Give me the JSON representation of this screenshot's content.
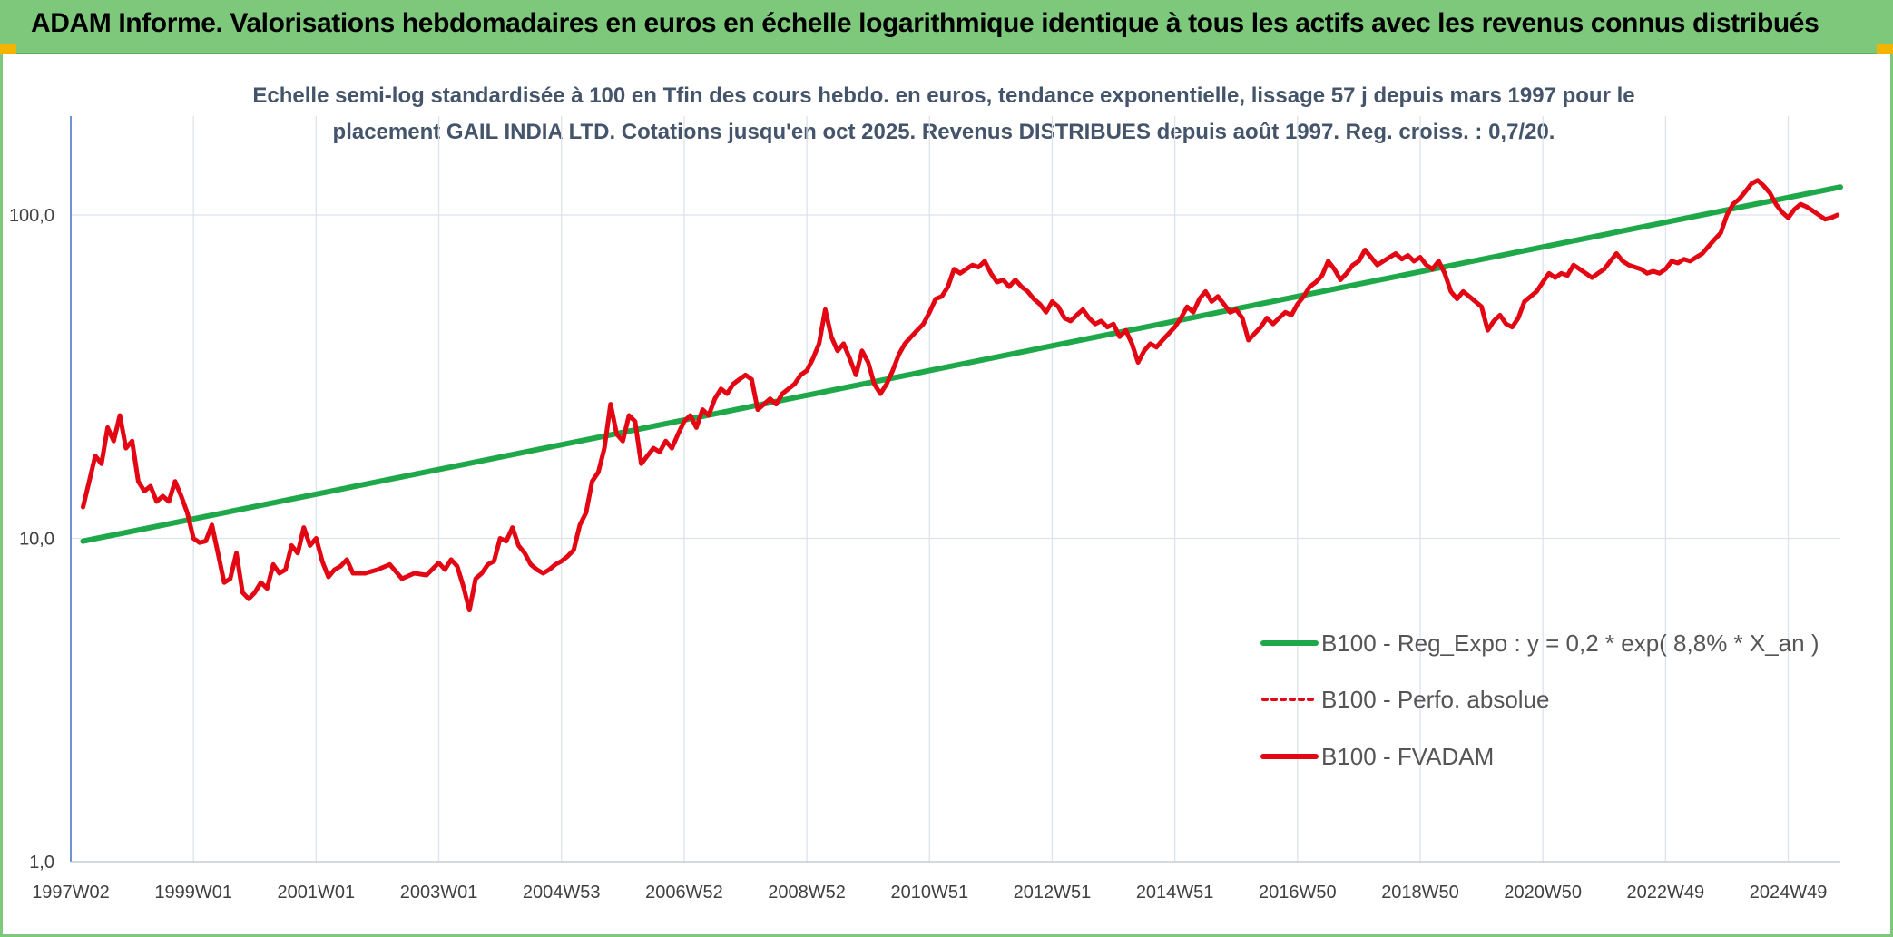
{
  "header": {
    "title": "ADAM Informe. Valorisations hebdomadaires en euros en échelle logarithmique identique à tous les actifs avec les revenus connus distribués"
  },
  "chart_data": {
    "type": "line",
    "title_line1": "Echelle semi-log standardisée à 100 en Tfin des cours hebdo. en euros, tendance exponentielle, lissage 57 j depuis mars 1997 pour le",
    "title_line2": "placement GAIL INDIA LTD. Cotations jusqu'en oct 2025. Revenus DISTRIBUES depuis août 1997. Reg. croiss. : 0,7/20.",
    "y_scale": "log",
    "ylim": [
      1,
      200
    ],
    "xlim": [
      1997.0,
      2025.85
    ],
    "y_ticks": [
      {
        "value": 1,
        "label": "1,0"
      },
      {
        "value": 10,
        "label": "10,0"
      },
      {
        "value": 100,
        "label": "100,0"
      }
    ],
    "x_ticks": [
      {
        "value": 1997.0,
        "label": "1997W02"
      },
      {
        "value": 1999.0,
        "label": "1999W01"
      },
      {
        "value": 2001.0,
        "label": "2001W01"
      },
      {
        "value": 2003.0,
        "label": "2003W01"
      },
      {
        "value": 2005.0,
        "label": "2004W53"
      },
      {
        "value": 2007.0,
        "label": "2006W52"
      },
      {
        "value": 2009.0,
        "label": "2008W52"
      },
      {
        "value": 2011.0,
        "label": "2010W51"
      },
      {
        "value": 2013.0,
        "label": "2012W51"
      },
      {
        "value": 2015.0,
        "label": "2014W51"
      },
      {
        "value": 2017.0,
        "label": "2016W50"
      },
      {
        "value": 2019.0,
        "label": "2018W50"
      },
      {
        "value": 2021.0,
        "label": "2020W50"
      },
      {
        "value": 2023.0,
        "label": "2022W49"
      },
      {
        "value": 2025.0,
        "label": "2024W49"
      }
    ],
    "grid": "vertical and horizontal",
    "legend_position": "bottom-right",
    "series": [
      {
        "name": "B100 - Reg_Expo : y = 0,2 * exp( 8,8% *  X_an )",
        "color": "#1fa84a",
        "style": "solid",
        "points": [
          [
            1997.2,
            9.8
          ],
          [
            2025.85,
            122
          ]
        ]
      },
      {
        "name": "B100 - Perfo. absolue",
        "color": "#e30613",
        "style": "dotted",
        "points": []
      },
      {
        "name": "B100 - FVADAM",
        "color": "#e30613",
        "style": "solid",
        "points": [
          [
            1997.2,
            12.5
          ],
          [
            1997.3,
            15
          ],
          [
            1997.4,
            18
          ],
          [
            1997.5,
            17
          ],
          [
            1997.6,
            22
          ],
          [
            1997.7,
            20
          ],
          [
            1997.8,
            24
          ],
          [
            1997.9,
            19
          ],
          [
            1998.0,
            20
          ],
          [
            1998.1,
            15
          ],
          [
            1998.2,
            14
          ],
          [
            1998.3,
            14.5
          ],
          [
            1998.4,
            13
          ],
          [
            1998.5,
            13.5
          ],
          [
            1998.6,
            13
          ],
          [
            1998.7,
            15
          ],
          [
            1998.8,
            13.5
          ],
          [
            1998.9,
            12
          ],
          [
            1999.0,
            10
          ],
          [
            1999.1,
            9.7
          ],
          [
            1999.2,
            9.8
          ],
          [
            1999.3,
            11
          ],
          [
            1999.4,
            9
          ],
          [
            1999.5,
            7.3
          ],
          [
            1999.6,
            7.5
          ],
          [
            1999.7,
            9
          ],
          [
            1999.8,
            6.8
          ],
          [
            1999.9,
            6.5
          ],
          [
            2000.0,
            6.8
          ],
          [
            2000.1,
            7.3
          ],
          [
            2000.2,
            7
          ],
          [
            2000.3,
            8.3
          ],
          [
            2000.4,
            7.8
          ],
          [
            2000.5,
            8
          ],
          [
            2000.6,
            9.5
          ],
          [
            2000.7,
            9
          ],
          [
            2000.8,
            10.8
          ],
          [
            2000.9,
            9.5
          ],
          [
            2001.0,
            10
          ],
          [
            2001.1,
            8.5
          ],
          [
            2001.2,
            7.6
          ],
          [
            2001.3,
            8
          ],
          [
            2001.4,
            8.2
          ],
          [
            2001.5,
            8.6
          ],
          [
            2001.6,
            7.8
          ],
          [
            2001.8,
            7.8
          ],
          [
            2002.0,
            8
          ],
          [
            2002.2,
            8.3
          ],
          [
            2002.4,
            7.5
          ],
          [
            2002.6,
            7.8
          ],
          [
            2002.8,
            7.7
          ],
          [
            2003.0,
            8.4
          ],
          [
            2003.1,
            8
          ],
          [
            2003.2,
            8.6
          ],
          [
            2003.3,
            8.2
          ],
          [
            2003.4,
            7.1
          ],
          [
            2003.5,
            6
          ],
          [
            2003.6,
            7.5
          ],
          [
            2003.7,
            7.8
          ],
          [
            2003.8,
            8.3
          ],
          [
            2003.9,
            8.5
          ],
          [
            2004.0,
            10
          ],
          [
            2004.1,
            9.8
          ],
          [
            2004.2,
            10.8
          ],
          [
            2004.3,
            9.5
          ],
          [
            2004.4,
            9
          ],
          [
            2004.5,
            8.3
          ],
          [
            2004.6,
            8
          ],
          [
            2004.7,
            7.8
          ],
          [
            2004.8,
            8
          ],
          [
            2004.9,
            8.3
          ],
          [
            2005.0,
            8.5
          ],
          [
            2005.1,
            8.8
          ],
          [
            2005.2,
            9.2
          ],
          [
            2005.3,
            11
          ],
          [
            2005.4,
            12
          ],
          [
            2005.5,
            15
          ],
          [
            2005.6,
            16
          ],
          [
            2005.7,
            19
          ],
          [
            2005.8,
            26
          ],
          [
            2005.9,
            21
          ],
          [
            2006.0,
            20
          ],
          [
            2006.1,
            24
          ],
          [
            2006.2,
            23
          ],
          [
            2006.3,
            17
          ],
          [
            2006.4,
            18
          ],
          [
            2006.5,
            19
          ],
          [
            2006.6,
            18.5
          ],
          [
            2006.7,
            20
          ],
          [
            2006.8,
            19
          ],
          [
            2006.9,
            21
          ],
          [
            2007.0,
            23
          ],
          [
            2007.1,
            24
          ],
          [
            2007.2,
            22
          ],
          [
            2007.3,
            25
          ],
          [
            2007.4,
            24
          ],
          [
            2007.5,
            27
          ],
          [
            2007.6,
            29
          ],
          [
            2007.7,
            28
          ],
          [
            2007.8,
            30
          ],
          [
            2007.9,
            31
          ],
          [
            2008.0,
            32
          ],
          [
            2008.1,
            31
          ],
          [
            2008.2,
            25
          ],
          [
            2008.3,
            26
          ],
          [
            2008.4,
            27
          ],
          [
            2008.5,
            26
          ],
          [
            2008.6,
            28
          ],
          [
            2008.7,
            29
          ],
          [
            2008.8,
            30
          ],
          [
            2008.9,
            32
          ],
          [
            2009.0,
            33
          ],
          [
            2009.1,
            36
          ],
          [
            2009.2,
            40
          ],
          [
            2009.3,
            51
          ],
          [
            2009.4,
            42
          ],
          [
            2009.5,
            38
          ],
          [
            2009.6,
            40
          ],
          [
            2009.7,
            36
          ],
          [
            2009.8,
            32
          ],
          [
            2009.9,
            38
          ],
          [
            2010.0,
            35
          ],
          [
            2010.1,
            30
          ],
          [
            2010.2,
            28
          ],
          [
            2010.3,
            30
          ],
          [
            2010.4,
            33
          ],
          [
            2010.5,
            37
          ],
          [
            2010.6,
            40
          ],
          [
            2010.7,
            42
          ],
          [
            2010.8,
            44
          ],
          [
            2010.9,
            46
          ],
          [
            2011.0,
            50
          ],
          [
            2011.1,
            55
          ],
          [
            2011.2,
            56
          ],
          [
            2011.3,
            60
          ],
          [
            2011.4,
            68
          ],
          [
            2011.5,
            66
          ],
          [
            2011.6,
            68
          ],
          [
            2011.7,
            70
          ],
          [
            2011.8,
            69
          ],
          [
            2011.9,
            72
          ],
          [
            2012.0,
            66
          ],
          [
            2012.1,
            62
          ],
          [
            2012.2,
            63
          ],
          [
            2012.3,
            60
          ],
          [
            2012.4,
            63
          ],
          [
            2012.5,
            60
          ],
          [
            2012.6,
            58
          ],
          [
            2012.7,
            55
          ],
          [
            2012.8,
            53
          ],
          [
            2012.9,
            50
          ],
          [
            2013.0,
            54
          ],
          [
            2013.1,
            52
          ],
          [
            2013.2,
            48
          ],
          [
            2013.3,
            47
          ],
          [
            2013.4,
            49
          ],
          [
            2013.5,
            51
          ],
          [
            2013.6,
            48
          ],
          [
            2013.7,
            46
          ],
          [
            2013.8,
            47
          ],
          [
            2013.9,
            45
          ],
          [
            2014.0,
            46
          ],
          [
            2014.1,
            42
          ],
          [
            2014.2,
            44
          ],
          [
            2014.3,
            40
          ],
          [
            2014.4,
            35
          ],
          [
            2014.5,
            38
          ],
          [
            2014.6,
            40
          ],
          [
            2014.7,
            39
          ],
          [
            2014.8,
            41
          ],
          [
            2014.9,
            43
          ],
          [
            2015.0,
            45
          ],
          [
            2015.1,
            48
          ],
          [
            2015.2,
            52
          ],
          [
            2015.3,
            50
          ],
          [
            2015.4,
            55
          ],
          [
            2015.5,
            58
          ],
          [
            2015.6,
            54
          ],
          [
            2015.7,
            56
          ],
          [
            2015.8,
            53
          ],
          [
            2015.9,
            50
          ],
          [
            2016.0,
            51
          ],
          [
            2016.1,
            48
          ],
          [
            2016.2,
            41
          ],
          [
            2016.3,
            43
          ],
          [
            2016.4,
            45
          ],
          [
            2016.5,
            48
          ],
          [
            2016.6,
            46
          ],
          [
            2016.7,
            48
          ],
          [
            2016.8,
            50
          ],
          [
            2016.9,
            49
          ],
          [
            2017.0,
            53
          ],
          [
            2017.1,
            56
          ],
          [
            2017.2,
            60
          ],
          [
            2017.3,
            62
          ],
          [
            2017.4,
            65
          ],
          [
            2017.5,
            72
          ],
          [
            2017.6,
            68
          ],
          [
            2017.7,
            63
          ],
          [
            2017.8,
            66
          ],
          [
            2017.9,
            70
          ],
          [
            2018.0,
            72
          ],
          [
            2018.1,
            78
          ],
          [
            2018.2,
            74
          ],
          [
            2018.3,
            70
          ],
          [
            2018.4,
            72
          ],
          [
            2018.5,
            74
          ],
          [
            2018.6,
            76
          ],
          [
            2018.7,
            73
          ],
          [
            2018.8,
            75
          ],
          [
            2018.9,
            72
          ],
          [
            2019.0,
            74
          ],
          [
            2019.1,
            70
          ],
          [
            2019.2,
            68
          ],
          [
            2019.3,
            72
          ],
          [
            2019.4,
            66
          ],
          [
            2019.5,
            58
          ],
          [
            2019.6,
            55
          ],
          [
            2019.7,
            58
          ],
          [
            2019.8,
            56
          ],
          [
            2019.9,
            54
          ],
          [
            2020.0,
            52
          ],
          [
            2020.1,
            44
          ],
          [
            2020.2,
            47
          ],
          [
            2020.3,
            49
          ],
          [
            2020.4,
            46
          ],
          [
            2020.5,
            45
          ],
          [
            2020.6,
            48
          ],
          [
            2020.7,
            54
          ],
          [
            2020.8,
            56
          ],
          [
            2020.9,
            58
          ],
          [
            2021.0,
            62
          ],
          [
            2021.1,
            66
          ],
          [
            2021.2,
            64
          ],
          [
            2021.3,
            66
          ],
          [
            2021.4,
            65
          ],
          [
            2021.5,
            70
          ],
          [
            2021.6,
            68
          ],
          [
            2021.7,
            66
          ],
          [
            2021.8,
            64
          ],
          [
            2021.9,
            66
          ],
          [
            2022.0,
            68
          ],
          [
            2022.1,
            72
          ],
          [
            2022.2,
            76
          ],
          [
            2022.3,
            72
          ],
          [
            2022.4,
            70
          ],
          [
            2022.5,
            69
          ],
          [
            2022.6,
            68
          ],
          [
            2022.7,
            66
          ],
          [
            2022.8,
            67
          ],
          [
            2022.9,
            66
          ],
          [
            2023.0,
            68
          ],
          [
            2023.1,
            72
          ],
          [
            2023.2,
            71
          ],
          [
            2023.3,
            73
          ],
          [
            2023.4,
            72
          ],
          [
            2023.5,
            74
          ],
          [
            2023.6,
            76
          ],
          [
            2023.7,
            80
          ],
          [
            2023.8,
            84
          ],
          [
            2023.9,
            88
          ],
          [
            2024.0,
            100
          ],
          [
            2024.1,
            108
          ],
          [
            2024.2,
            112
          ],
          [
            2024.3,
            118
          ],
          [
            2024.4,
            125
          ],
          [
            2024.5,
            128
          ],
          [
            2024.6,
            123
          ],
          [
            2024.7,
            117
          ],
          [
            2024.8,
            108
          ],
          [
            2024.9,
            102
          ],
          [
            2025.0,
            98
          ],
          [
            2025.1,
            104
          ],
          [
            2025.2,
            108
          ],
          [
            2025.3,
            106
          ],
          [
            2025.4,
            103
          ],
          [
            2025.5,
            100
          ],
          [
            2025.6,
            97
          ],
          [
            2025.7,
            98
          ],
          [
            2025.8,
            100
          ]
        ]
      }
    ]
  }
}
